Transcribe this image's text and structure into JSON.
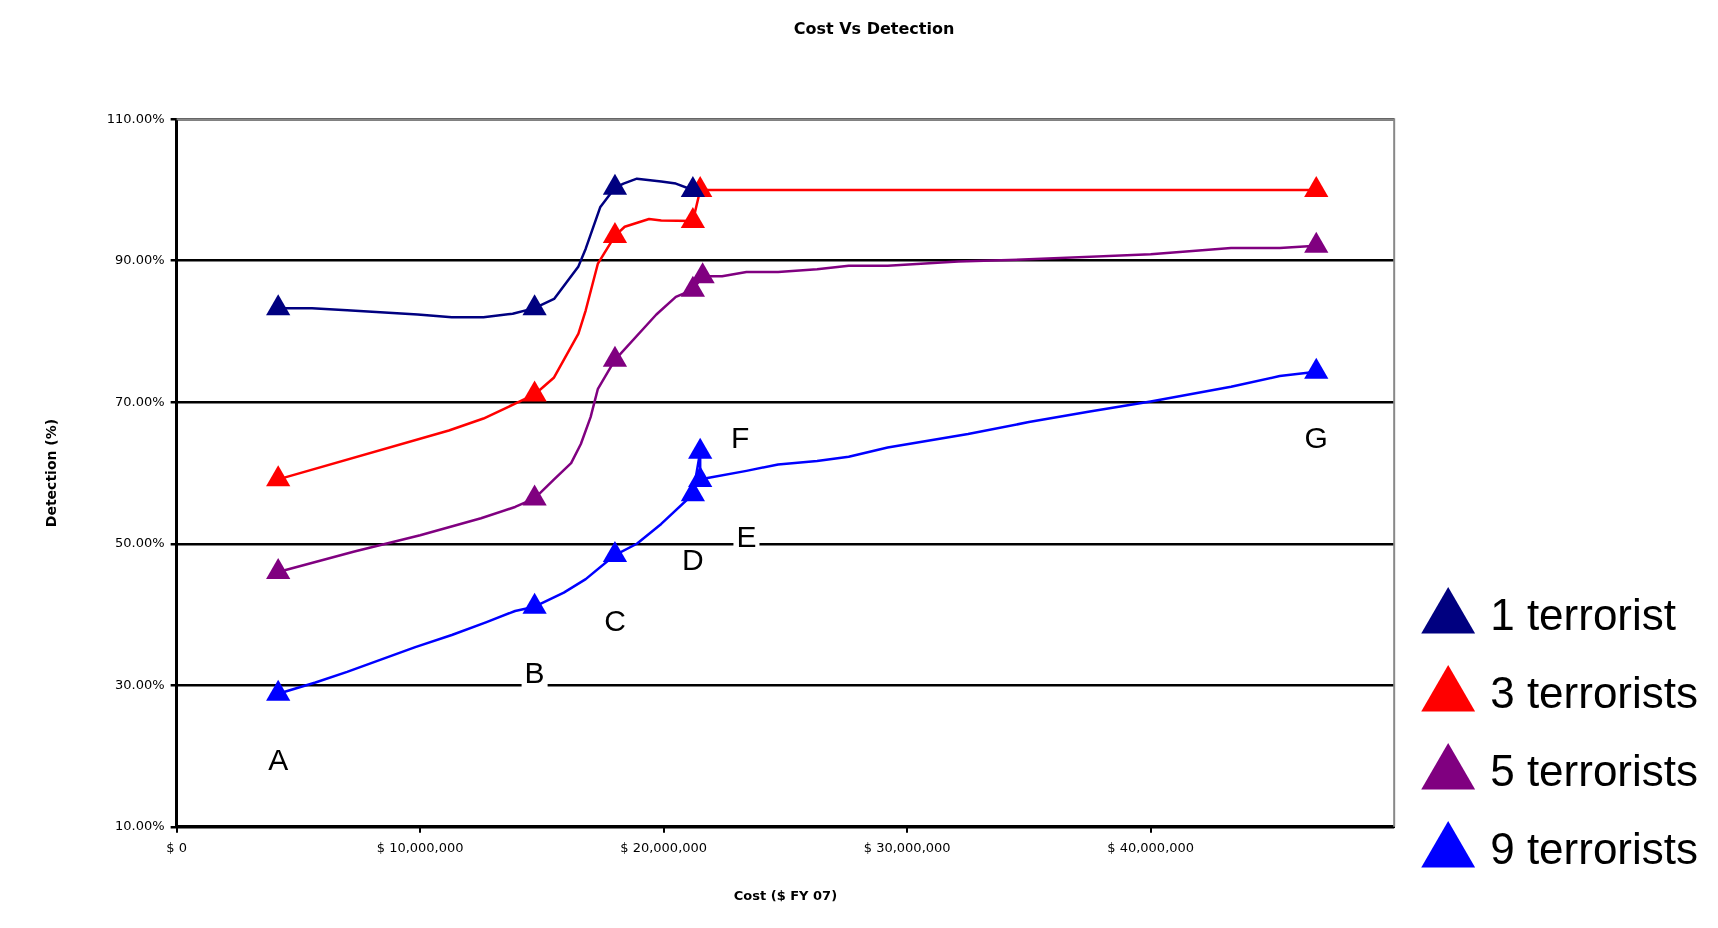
{
  "chart_data": {
    "type": "line",
    "title": "Cost Vs Detection",
    "xlabel": "Cost ($ FY 07)",
    "ylabel": "Detection (%)",
    "xlim": [
      0,
      50000000
    ],
    "xticks": [
      {
        "value": 0,
        "label": "$ 0"
      },
      {
        "value": 10000000,
        "label": "$ 10,000,000"
      },
      {
        "value": 20000000,
        "label": "$ 20,000,000"
      },
      {
        "value": 30000000,
        "label": "$ 30,000,000"
      },
      {
        "value": 40000000,
        "label": "$ 40,000,000"
      }
    ],
    "ylim": [
      10,
      110
    ],
    "yticks": [
      {
        "value": 10,
        "label": "10.00%"
      },
      {
        "value": 30,
        "label": "30.00%"
      },
      {
        "value": 50,
        "label": "50.00%"
      },
      {
        "value": 70,
        "label": "70.00%"
      },
      {
        "value": 90,
        "label": "90.00%"
      },
      {
        "value": 110,
        "label": "110.00%"
      }
    ],
    "grid": "y",
    "legend": "bottom right",
    "line_style": "solid",
    "series": [
      {
        "name": "1 terrorist",
        "color": "#000080",
        "type": "line",
        "marker": "none",
        "x": [
          4170000,
          5560000,
          7000000,
          9900000,
          11300000,
          12600000,
          13800000,
          14700000,
          15500000,
          16500000,
          16800000,
          17400000,
          18000000,
          18350000,
          18900000,
          19900000,
          20500000,
          21200000
        ],
        "values": [
          83.3,
          83.3,
          83.0,
          82.4,
          82.0,
          82.0,
          82.5,
          83.3,
          84.6,
          89.2,
          91.7,
          97.6,
          100.3,
          100.9,
          101.6,
          101.2,
          100.9,
          100
        ]
      },
      {
        "color": "#000080",
        "type": "scatter",
        "marker": "triangle",
        "x": [
          4170000,
          14700000,
          18000000,
          21200000
        ],
        "values": [
          83.3,
          83.3,
          100.3,
          100
        ]
      },
      {
        "name": "3 terrorists",
        "color": "#ff0000",
        "type": "line",
        "marker": "none",
        "x": [
          4170000,
          11180000,
          12600000,
          13900000,
          14700000,
          15500000,
          16500000,
          16800000,
          17300000,
          18000000,
          18400000,
          19400000,
          19900000,
          21200000,
          21500000,
          46800000
        ],
        "values": [
          59.1,
          66.0,
          67.7,
          69.8,
          71.1,
          73.5,
          79.7,
          83.0,
          89.6,
          93.5,
          94.8,
          95.9,
          95.7,
          95.6,
          100,
          100
        ]
      },
      {
        "color": "#ff0000",
        "type": "scatter",
        "marker": "triangle",
        "x": [
          4170000,
          14700000,
          18000000,
          21200000,
          21500000,
          46800000
        ],
        "values": [
          59.1,
          71.1,
          93.5,
          95.6,
          100,
          100
        ]
      },
      {
        "name": "5 terrorists",
        "color": "#800080",
        "type": "line",
        "marker": "none",
        "x": [
          4170000,
          7300000,
          10000000,
          12500000,
          13900000,
          14700000,
          15500000,
          16200000,
          16600000,
          17000000,
          17300000,
          18000000,
          19700000,
          20500000,
          21200000,
          21600000,
          22400000,
          23400000,
          24700000,
          26300000,
          27600000,
          29200000,
          32100000,
          35000000,
          40000000,
          43300000,
          45300000,
          46800000
        ],
        "values": [
          46.0,
          48.9,
          51.2,
          53.6,
          55.2,
          56.4,
          59.1,
          61.4,
          64.1,
          67.9,
          71.9,
          76.0,
          82.4,
          84.9,
          85.9,
          87.8,
          87.8,
          88.4,
          88.4,
          88.8,
          89.3,
          89.3,
          89.9,
          90.2,
          90.9,
          91.8,
          91.8,
          92.1
        ]
      },
      {
        "color": "#800080",
        "type": "scatter",
        "marker": "triangle",
        "x": [
          4170000,
          14700000,
          18000000,
          21200000,
          21600000,
          46800000
        ],
        "values": [
          46.0,
          56.4,
          76.0,
          85.9,
          87.8,
          92.1
        ]
      },
      {
        "name": "9 terrorists",
        "color": "#0000ff",
        "type": "line",
        "marker": "none",
        "x": [
          4170000,
          5700000,
          7000000,
          9800000,
          11300000,
          12700000,
          13900000,
          14700000,
          15900000,
          16800000,
          18000000,
          18900000,
          19900000,
          21200000,
          21500000,
          21500000,
          21800000,
          23400000,
          24700000,
          26300000,
          27600000,
          29200000,
          32500000,
          35000000,
          37500000,
          40000000,
          43300000,
          45300000,
          46800000
        ],
        "values": [
          28.8,
          30.4,
          31.9,
          35.4,
          37.1,
          38.9,
          40.5,
          41.1,
          43.1,
          45.0,
          48.4,
          50.0,
          52.8,
          57.0,
          63.0,
          59.0,
          59.3,
          60.3,
          61.2,
          61.7,
          62.3,
          63.6,
          65.5,
          67.2,
          68.7,
          70.1,
          72.2,
          73.7,
          74.3
        ]
      },
      {
        "color": "#0000ff",
        "type": "scatter",
        "marker": "triangle",
        "x": [
          4170000,
          14700000,
          18000000,
          21200000,
          21500000,
          21500000,
          46800000
        ],
        "values": [
          28.8,
          41.1,
          48.4,
          57.0,
          63.0,
          59.0,
          74.3
        ]
      }
    ],
    "annotations": [
      {
        "text": "A",
        "x": 4170000,
        "y": 28.8
      },
      {
        "text": "B",
        "x": 14700000,
        "y": 41.1
      },
      {
        "text": "C",
        "x": 18000000,
        "y": 48.4
      },
      {
        "text": "D",
        "x": 21200000,
        "y": 57.0
      },
      {
        "text": "E",
        "x": 23400000,
        "y": 60.3
      },
      {
        "text": "F",
        "x": 21500000,
        "y": 63.0
      },
      {
        "text": "G",
        "x": 46800000,
        "y": 74.3
      }
    ]
  }
}
